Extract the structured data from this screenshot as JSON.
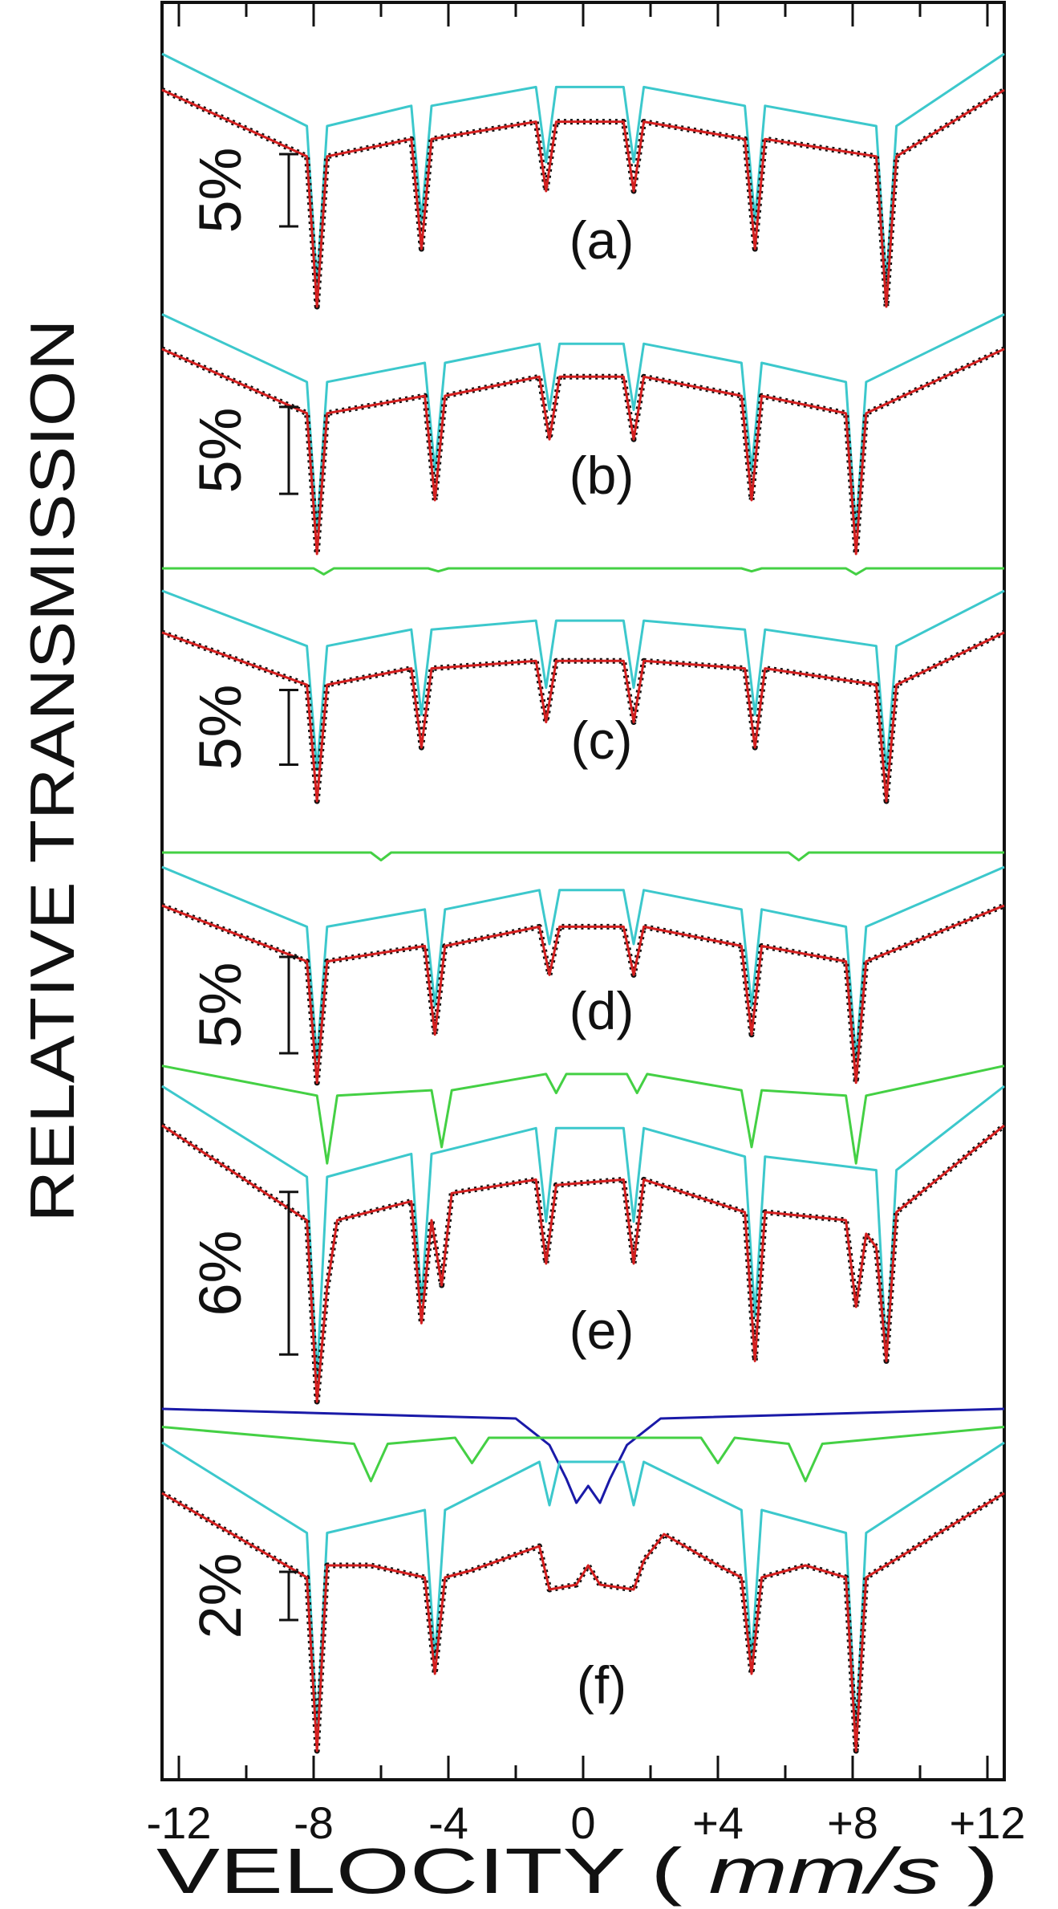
{
  "chart_data": {
    "type": "line",
    "ylabel": "RELATIVE TRANSMISSION",
    "xlabel_parts": [
      "VELOCITY (",
      "mm/s",
      ")"
    ],
    "xlim": [
      -12.5,
      12.5
    ],
    "xticks": [
      -12,
      -8,
      -4,
      0,
      {
        "value": 4,
        "label": "+4"
      },
      {
        "value": 8,
        "label": "+8"
      },
      {
        "value": 12,
        "label": "+12"
      }
    ],
    "xminor_ticks": [
      -10,
      -6,
      -2,
      2,
      6,
      10
    ],
    "panels": [
      {
        "label": "(a)",
        "scale_bar": {
          "value": 5,
          "label": "5%"
        },
        "ylim": [
          84,
          106
        ],
        "x": [
          -12.5,
          -8.2,
          -7.9,
          -7.6,
          -5.1,
          -4.8,
          -4.5,
          -1.4,
          -1.1,
          -0.8,
          1.2,
          1.5,
          1.8,
          4.8,
          5.1,
          5.4,
          8.7,
          9.0,
          9.3,
          12.5
        ],
        "series": [
          {
            "color": "#3cc8cc",
            "values": [
              102.5,
              97.5,
              86.5,
              97.5,
              98.9,
              91,
              98.9,
              100.2,
              95,
              100.2,
              100.2,
              95,
              100.2,
              98.9,
              91,
              98.9,
              97.5,
              86.5,
              97.5,
              102.5
            ]
          },
          {
            "color": "#d42020",
            "values": [
              100,
              95.4,
              85,
              95.4,
              96.6,
              89,
              96.6,
              97.8,
              93,
              97.8,
              97.8,
              93,
              97.8,
              96.6,
              89,
              96.6,
              95.4,
              85,
              95.4,
              100
            ]
          }
        ]
      },
      {
        "label": "(b)",
        "scale_bar": {
          "value": 5,
          "label": "5%"
        },
        "ylim": [
          87,
          103.5
        ],
        "x": [
          -12.5,
          -8.2,
          -7.9,
          -7.6,
          -4.7,
          -4.4,
          -4.1,
          -1.3,
          -1.0,
          -0.7,
          1.2,
          1.5,
          1.8,
          4.7,
          5.0,
          5.3,
          7.8,
          8.1,
          8.4,
          12.5
        ],
        "series": [
          {
            "color": "#3cc8cc",
            "values": [
              102,
              98.1,
              89.5,
              98.1,
              99.2,
              93,
              99.2,
              100.3,
              96.5,
              100.3,
              100.3,
              96.5,
              100.3,
              99.2,
              93,
              99.2,
              98.1,
              89.5,
              98.1,
              102
            ]
          },
          {
            "color": "#d42020",
            "values": [
              100,
              96.3,
              88.2,
              96.3,
              97.3,
              91.3,
              97.3,
              98.4,
              94.8,
              98.4,
              98.4,
              94.8,
              98.4,
              97.3,
              91.3,
              97.3,
              96.3,
              88.2,
              96.3,
              100
            ]
          }
        ]
      },
      {
        "label": "(c)",
        "scale_bar": {
          "value": 5,
          "label": "5%"
        },
        "ylim": [
          88,
          105
        ],
        "x": [
          -12.5,
          -8.2,
          -7.9,
          -7.6,
          -5.1,
          -4.8,
          -4.5,
          -1.4,
          -1.1,
          -0.8,
          1.2,
          1.5,
          1.8,
          4.8,
          5.1,
          5.4,
          8.7,
          9.0,
          9.3,
          12.5
        ],
        "series": [
          {
            "color": "#44d044",
            "x": [
              -12.5,
              -8,
              -7.7,
              -7.4,
              -4.6,
              -4.3,
              -4.0,
              4.7,
              5.0,
              5.3,
              7.8,
              8.1,
              8.4,
              12.5
            ],
            "values": [
              104.3,
              104.3,
              103.9,
              104.3,
              104.3,
              104.1,
              104.3,
              104.3,
              104.1,
              104.3,
              104.3,
              103.9,
              104.3,
              104.3
            ]
          },
          {
            "color": "#3cc8cc",
            "values": [
              102.8,
              99.1,
              90.8,
              99.1,
              100.2,
              94.5,
              100.2,
              100.8,
              96.3,
              100.8,
              100.8,
              96.3,
              100.8,
              100.2,
              94.5,
              100.2,
              99.1,
              90.8,
              99.1,
              102.8
            ]
          },
          {
            "color": "#d42020",
            "values": [
              100,
              96.5,
              88.7,
              96.5,
              97.6,
              92.3,
              97.6,
              98.1,
              94,
              98.1,
              98.1,
              94,
              98.1,
              97.6,
              92.3,
              97.6,
              96.5,
              88.7,
              96.5,
              100
            ]
          }
        ]
      },
      {
        "label": "(d)",
        "scale_bar": {
          "value": 5,
          "label": "5%"
        },
        "ylim": [
          90,
          103.5
        ],
        "x": [
          -12.5,
          -8.2,
          -7.9,
          -7.6,
          -4.7,
          -4.4,
          -4.1,
          -1.3,
          -1.0,
          -0.7,
          1.2,
          1.5,
          1.8,
          4.7,
          5.0,
          5.3,
          7.8,
          8.1,
          8.4,
          12.5
        ],
        "series": [
          {
            "color": "#44d044",
            "x": [
              -12.5,
              -6.3,
              -6.0,
              -5.7,
              6.1,
              6.4,
              6.7,
              12.5
            ],
            "values": [
              102.75,
              102.75,
              102.35,
              102.75,
              102.75,
              102.35,
              102.75,
              102.75
            ]
          },
          {
            "color": "#3cc8cc",
            "values": [
              102,
              98.9,
              92,
              98.9,
              99.8,
              94.8,
              99.8,
              100.8,
              98,
              100.8,
              100.8,
              98,
              100.8,
              99.8,
              94.8,
              99.8,
              98.9,
              92,
              98.9,
              102
            ]
          },
          {
            "color": "#d42020",
            "values": [
              100,
              97.1,
              90.8,
              97.1,
              97.9,
              93.3,
              97.9,
              98.9,
              96.4,
              98.9,
              98.9,
              96.4,
              98.9,
              97.9,
              93.3,
              97.9,
              97.1,
              90.8,
              97.1,
              100
            ]
          }
        ]
      },
      {
        "label": "(e)",
        "scale_bar": {
          "value": 6,
          "label": "6%"
        },
        "ylim": [
          89,
          102.8
        ],
        "x": [
          -12.5,
          -8.2,
          -7.9,
          -7.6,
          -5.1,
          -4.8,
          -4.5,
          -1.4,
          -1.1,
          -0.8,
          1.2,
          1.5,
          1.8,
          4.8,
          5.1,
          5.4,
          8.7,
          9.0,
          9.3,
          12.5
        ],
        "series": [
          {
            "color": "#44d044",
            "x": [
              -12.5,
              -7.9,
              -7.6,
              -7.3,
              -4.5,
              -4.2,
              -3.9,
              -1.1,
              -0.8,
              -0.5,
              1.3,
              1.6,
              1.9,
              4.7,
              5.0,
              5.3,
              7.8,
              8.1,
              8.4,
              12.5
            ],
            "values": [
              102.2,
              101.1,
              98.6,
              101.1,
              101.3,
              99.2,
              101.3,
              101.9,
              101.2,
              101.9,
              101.9,
              101.2,
              101.9,
              101.3,
              99.2,
              101.3,
              101.1,
              98.6,
              101.1,
              102.2
            ]
          },
          {
            "color": "#3cc8cc",
            "values": [
              101.45,
              98.1,
              90.65,
              98.1,
              98.95,
              93.45,
              98.95,
              99.9,
              96.45,
              99.9,
              99.9,
              96.45,
              99.9,
              98.85,
              92.95,
              98.85,
              98.35,
              91.45,
              98.35,
              101.45
            ]
          },
          {
            "color": "#d42020",
            "x": [
              -12.5,
              -8.2,
              -7.9,
              -7.6,
              -7.3,
              -5.1,
              -4.8,
              -4.5,
              -4.2,
              -3.9,
              -1.4,
              -1.1,
              -0.8,
              1.2,
              1.5,
              1.8,
              4.8,
              5.1,
              5.4,
              7.8,
              8.1,
              8.4,
              8.7,
              9.0,
              9.3,
              12.5
            ],
            "values": [
              100,
              96.5,
              89.8,
              94,
              96.5,
              97.2,
              92.7,
              96.5,
              94.1,
              97.5,
              98,
              94.9,
              97.8,
              98,
              94.9,
              98,
              96.8,
              91.3,
              96.8,
              96.5,
              93.3,
              96,
              95.5,
              91.3,
              96.8,
              100
            ]
          }
        ]
      },
      {
        "label": "(f)",
        "scale_bar": {
          "value": 2,
          "label": "2%"
        },
        "ylim": [
          89,
          104
        ],
        "x": [
          -12.5,
          -8.2,
          -7.9,
          -7.6,
          -4.7,
          -4.4,
          -4.1,
          -1.3,
          -1.0,
          -0.7,
          1.2,
          1.5,
          1.8,
          4.7,
          5.0,
          5.3,
          7.8,
          8.1,
          8.4,
          12.5
        ],
        "series": [
          {
            "color": "#1a1aa8",
            "x": [
              -12.5,
              -2,
              -1,
              -0.5,
              -0.2,
              0.15,
              0.5,
              0.8,
              1.3,
              2.3,
              12.5
            ],
            "values": [
              103.5,
              103.1,
              102,
              100.6,
              99.6,
              100.3,
              99.6,
              100.6,
              102,
              103.1,
              103.5
            ]
          },
          {
            "color": "#44d044",
            "x": [
              -12.5,
              -6.8,
              -6.3,
              -5.8,
              -3.8,
              -3.3,
              -2.8,
              3.5,
              4.0,
              4.5,
              6.1,
              6.6,
              7.1,
              12.5
            ],
            "values": [
              102.75,
              102.05,
              100.5,
              102.05,
              102.3,
              101.25,
              102.3,
              102.3,
              101.25,
              102.3,
              102.05,
              100.5,
              102.05,
              102.75
            ]
          },
          {
            "color": "#3cc8cc",
            "values": [
              102.1,
              98.35,
              90,
              98.35,
              99.3,
              93.1,
              99.3,
              101.3,
              99.5,
              101.3,
              101.3,
              99.5,
              101.3,
              99.3,
              93.1,
              99.3,
              98.35,
              90,
              98.35,
              102.1
            ]
          },
          {
            "color": "#d42020",
            "x": [
              -12.5,
              -8.2,
              -7.9,
              -7.6,
              -6.3,
              -4.7,
              -4.4,
              -4.1,
              -3.3,
              -1.3,
              -1.0,
              -0.2,
              0.15,
              0.5,
              1.5,
              1.8,
              2.4,
              4.0,
              4.7,
              5.0,
              5.3,
              6.6,
              7.8,
              8.1,
              8.4,
              12.5
            ],
            "values": [
              100,
              96.5,
              89.3,
              97,
              97,
              96.5,
              92.5,
              96.5,
              96.8,
              97.8,
              96,
              96.2,
              97,
              96.2,
              96,
              97.2,
              98.3,
              97,
              96.5,
              92.5,
              96.5,
              97,
              96.5,
              89.3,
              96.5,
              100
            ]
          }
        ]
      }
    ]
  }
}
